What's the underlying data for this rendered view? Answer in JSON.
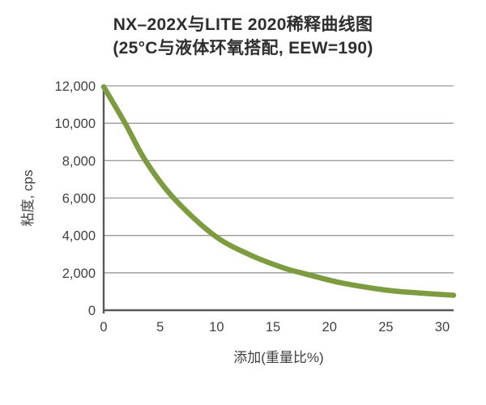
{
  "title": {
    "line1": "NX–202X与LITE 2020稀释曲线图",
    "line2": "(25°C与液体环氧搭配, EEW=190)"
  },
  "colors": {
    "curve": "#7d9b3f",
    "grid": "#9a9a9a",
    "axis": "#595959",
    "tick_text": "#414141",
    "title_text": "#2e2e2e"
  },
  "chart_data": {
    "type": "line",
    "title": "NX–202X与LITE 2020稀释曲线图 (25°C与液体环氧搭配, EEW=190)",
    "xlabel": "添加(重量比%)",
    "ylabel": "粘度, cps",
    "xlim": [
      0,
      31
    ],
    "ylim": [
      0,
      12000
    ],
    "grid": "horizontal",
    "legend": "none",
    "x_ticks": [
      {
        "value": 0,
        "label": "0"
      },
      {
        "value": 5,
        "label": "5"
      },
      {
        "value": 10,
        "label": "10"
      },
      {
        "value": 15,
        "label": "15"
      },
      {
        "value": 20,
        "label": "20"
      },
      {
        "value": 25,
        "label": "25"
      },
      {
        "value": 30,
        "label": "30"
      }
    ],
    "y_ticks": [
      {
        "value": 0,
        "label": "0"
      },
      {
        "value": 2000,
        "label": "2,000"
      },
      {
        "value": 4000,
        "label": "4,000"
      },
      {
        "value": 6000,
        "label": "6,000"
      },
      {
        "value": 8000,
        "label": "8,000"
      },
      {
        "value": 10000,
        "label": "10,000"
      },
      {
        "value": 12000,
        "label": "12,000"
      }
    ],
    "series": [
      {
        "name": "粘度, cps",
        "color": "#7d9b3f",
        "x": [
          0,
          1.9,
          3.7,
          6.2,
          9.8,
          13,
          16,
          17.5,
          21,
          25,
          28,
          31
        ],
        "y": [
          11950,
          10000,
          8000,
          6000,
          4000,
          2950,
          2250,
          2000,
          1470,
          1080,
          920,
          800
        ]
      }
    ]
  }
}
